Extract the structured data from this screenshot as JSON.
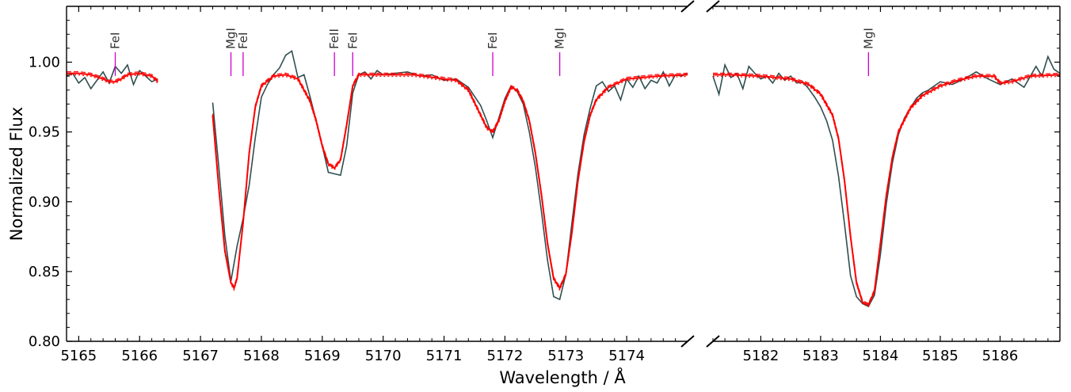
{
  "chart_data": {
    "type": "line",
    "title": "",
    "xlabel": "Wavelength / Å",
    "ylabel": "Normalized Flux",
    "ylim": [
      0.8,
      1.04
    ],
    "yticks": [
      0.8,
      0.85,
      0.9,
      0.95,
      1.0
    ],
    "ytick_labels": [
      "0.80",
      "0.85",
      "0.90",
      "0.95",
      "1.00"
    ],
    "grid": false,
    "broken_x_axis": true,
    "panels": [
      {
        "xlim": [
          5164.8,
          5175.0
        ],
        "xticks": [
          5165,
          5166,
          5167,
          5168,
          5169,
          5170,
          5171,
          5172,
          5173,
          5174
        ],
        "xtick_labels": [
          "5165",
          "5166",
          "5167",
          "5168",
          "5169",
          "5170",
          "5171",
          "5172",
          "5173",
          "5174"
        ]
      },
      {
        "xlim": [
          5181.2,
          5187.0
        ],
        "xticks": [
          5182,
          5183,
          5184,
          5185,
          5186
        ],
        "xtick_labels": [
          "5182",
          "5183",
          "5184",
          "5185",
          "5186"
        ]
      }
    ],
    "colors": {
      "observed": "#2f4f4f",
      "model": "#ff0000",
      "line_marker": "#cc00cc"
    },
    "line_ids": [
      {
        "label": "FeI",
        "x": 5165.6
      },
      {
        "label": "MgI",
        "x": 5167.5
      },
      {
        "label": "FeI",
        "x": 5167.7
      },
      {
        "label": "FeII",
        "x": 5169.2
      },
      {
        "label": "FeI",
        "x": 5169.5
      },
      {
        "label": "FeI",
        "x": 5171.8
      },
      {
        "label": "MgI",
        "x": 5172.9
      },
      {
        "label": "MgI",
        "x": 5183.8
      }
    ],
    "series": [
      {
        "style": "observed",
        "segments": [
          {
            "x": [
              5164.8,
              5164.9,
              5165.0,
              5165.1,
              5165.2,
              5165.3,
              5165.4,
              5165.5,
              5165.6,
              5165.7,
              5165.8,
              5165.9,
              5166.0,
              5166.1,
              5166.2,
              5166.3
            ],
            "y": [
              0.99,
              0.992,
              0.985,
              0.989,
              0.981,
              0.987,
              0.993,
              0.985,
              0.997,
              0.992,
              0.998,
              0.984,
              0.994,
              0.99,
              0.986,
              0.988
            ]
          },
          {
            "x": [
              5167.2,
              5167.3,
              5167.4,
              5167.5,
              5167.6,
              5167.7,
              5167.8,
              5167.9,
              5168.0,
              5168.1,
              5168.2,
              5168.3,
              5168.4,
              5168.5,
              5168.6,
              5168.7,
              5168.8,
              5168.9,
              5169.0,
              5169.1,
              5169.2,
              5169.3,
              5169.4,
              5169.5,
              5169.6,
              5169.7,
              5169.8,
              5169.9,
              5170.0,
              5170.2,
              5170.4,
              5170.6,
              5170.8,
              5171.0,
              5171.2,
              5171.4,
              5171.6,
              5171.7,
              5171.8,
              5171.9,
              5172.0,
              5172.1,
              5172.2,
              5172.3,
              5172.4,
              5172.5,
              5172.6,
              5172.7,
              5172.8,
              5172.9,
              5173.0,
              5173.1,
              5173.2,
              5173.3,
              5173.4,
              5173.5,
              5173.6,
              5173.7,
              5173.8,
              5173.9,
              5174.0,
              5174.1,
              5174.2,
              5174.3,
              5174.4,
              5174.5,
              5174.6,
              5174.7,
              5174.8,
              5174.9,
              5175.0
            ],
            "y": [
              0.971,
              0.925,
              0.876,
              0.843,
              0.868,
              0.888,
              0.912,
              0.946,
              0.975,
              0.984,
              0.991,
              0.996,
              1.005,
              1.008,
              0.989,
              0.991,
              0.975,
              0.958,
              0.94,
              0.921,
              0.92,
              0.919,
              0.94,
              0.978,
              0.991,
              0.993,
              0.988,
              0.994,
              0.991,
              0.992,
              0.993,
              0.99,
              0.991,
              0.987,
              0.988,
              0.982,
              0.969,
              0.958,
              0.946,
              0.96,
              0.974,
              0.983,
              0.979,
              0.97,
              0.95,
              0.925,
              0.893,
              0.858,
              0.832,
              0.83,
              0.848,
              0.885,
              0.92,
              0.948,
              0.967,
              0.983,
              0.986,
              0.979,
              0.983,
              0.973,
              0.988,
              0.982,
              0.99,
              0.981,
              0.987,
              0.985,
              0.993,
              0.983,
              0.991,
              0.99,
              0.992
            ]
          }
        ]
      },
      {
        "style": "observed",
        "segments": [
          {
            "x": [
              5181.2,
              5181.3,
              5181.4,
              5181.5,
              5181.6,
              5181.7,
              5181.8,
              5181.9,
              5182.0,
              5182.1,
              5182.2,
              5182.3,
              5182.4,
              5182.5,
              5182.6,
              5182.7,
              5182.8,
              5182.9,
              5183.0,
              5183.1,
              5183.2,
              5183.3,
              5183.4,
              5183.5,
              5183.6,
              5183.7,
              5183.8,
              5183.9,
              5184.0,
              5184.1,
              5184.2,
              5184.3,
              5184.4,
              5184.5,
              5184.6,
              5184.7,
              5184.8,
              5184.9,
              5185.0,
              5185.2,
              5185.4,
              5185.6,
              5185.8,
              5186.0,
              5186.2,
              5186.4,
              5186.6,
              5186.7,
              5186.8,
              5186.9,
              5187.0
            ],
            "y": [
              0.99,
              0.977,
              0.998,
              0.989,
              0.992,
              0.981,
              0.997,
              0.992,
              0.988,
              0.99,
              0.985,
              0.992,
              0.987,
              0.99,
              0.985,
              0.986,
              0.981,
              0.975,
              0.968,
              0.958,
              0.944,
              0.918,
              0.884,
              0.847,
              0.832,
              0.827,
              0.825,
              0.833,
              0.862,
              0.899,
              0.928,
              0.948,
              0.96,
              0.967,
              0.974,
              0.978,
              0.98,
              0.983,
              0.986,
              0.984,
              0.988,
              0.993,
              0.988,
              0.984,
              0.988,
              0.982,
              0.997,
              0.99,
              1.004,
              0.995,
              0.992
            ]
          }
        ]
      },
      {
        "style": "model",
        "segments": [
          {
            "x": [
              5164.8,
              5165.0,
              5165.2,
              5165.4,
              5165.5,
              5165.6,
              5165.7,
              5165.8,
              5166.0,
              5166.2,
              5166.3
            ],
            "y": [
              0.992,
              0.992,
              0.991,
              0.988,
              0.986,
              0.986,
              0.988,
              0.991,
              0.992,
              0.99,
              0.986
            ]
          },
          {
            "x": [
              5167.2,
              5167.3,
              5167.4,
              5167.5,
              5167.55,
              5167.6,
              5167.7,
              5167.8,
              5167.9,
              5168.0,
              5168.2,
              5168.4,
              5168.6,
              5168.8,
              5168.9,
              5169.0,
              5169.1,
              5169.2,
              5169.3,
              5169.4,
              5169.5,
              5169.6,
              5170.0,
              5170.5,
              5171.0,
              5171.2,
              5171.4,
              5171.6,
              5171.7,
              5171.8,
              5171.9,
              5172.0,
              5172.1,
              5172.2,
              5172.3,
              5172.4,
              5172.5,
              5172.6,
              5172.7,
              5172.8,
              5172.9,
              5173.0,
              5173.1,
              5173.2,
              5173.3,
              5173.4,
              5173.5,
              5173.7,
              5174.0,
              5174.5,
              5175.0
            ],
            "y": [
              0.962,
              0.91,
              0.865,
              0.842,
              0.838,
              0.845,
              0.885,
              0.935,
              0.968,
              0.983,
              0.99,
              0.991,
              0.988,
              0.972,
              0.958,
              0.94,
              0.927,
              0.924,
              0.93,
              0.955,
              0.983,
              0.991,
              0.991,
              0.991,
              0.988,
              0.987,
              0.98,
              0.962,
              0.953,
              0.95,
              0.958,
              0.972,
              0.982,
              0.98,
              0.972,
              0.958,
              0.935,
              0.905,
              0.87,
              0.845,
              0.838,
              0.848,
              0.878,
              0.915,
              0.943,
              0.962,
              0.973,
              0.982,
              0.988,
              0.99,
              0.991
            ]
          }
        ]
      },
      {
        "style": "model",
        "segments": [
          {
            "x": [
              5181.2,
              5181.5,
              5182.0,
              5182.5,
              5182.8,
              5183.0,
              5183.2,
              5183.3,
              5183.4,
              5183.5,
              5183.6,
              5183.7,
              5183.8,
              5183.9,
              5184.0,
              5184.1,
              5184.2,
              5184.3,
              5184.5,
              5184.7,
              5185.0,
              5185.3,
              5185.6,
              5185.9,
              5186.0,
              5186.2,
              5186.5,
              5187.0
            ],
            "y": [
              0.991,
              0.991,
              0.99,
              0.988,
              0.984,
              0.977,
              0.962,
              0.945,
              0.915,
              0.875,
              0.842,
              0.828,
              0.826,
              0.836,
              0.87,
              0.905,
              0.932,
              0.95,
              0.967,
              0.976,
              0.983,
              0.987,
              0.99,
              0.99,
              0.985,
              0.986,
              0.99,
              0.991
            ]
          }
        ]
      }
    ]
  }
}
